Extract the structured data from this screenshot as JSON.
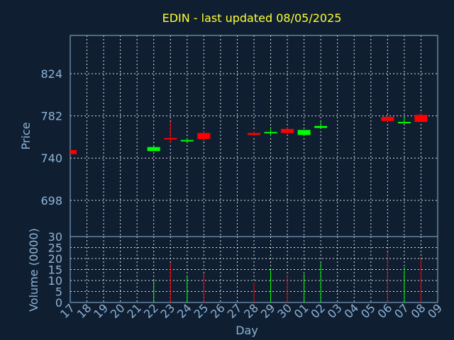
{
  "chart_data": {
    "type": "candlestick",
    "title": "EDIN - last updated 08/05/2025",
    "xlabel": "Day",
    "ylabel": "Price",
    "volume_ylabel": "Volume (0000)",
    "x_ticks": [
      "17",
      "18",
      "19",
      "20",
      "21",
      "22",
      "23",
      "24",
      "25",
      "26",
      "27",
      "28",
      "29",
      "30",
      "01",
      "02",
      "03",
      "04",
      "05",
      "06",
      "07",
      "08",
      "09"
    ],
    "price_ticks": [
      698,
      740,
      782,
      824
    ],
    "price_ylim": [
      662,
      862
    ],
    "volume_ticks": [
      0,
      5,
      10,
      15,
      20,
      25,
      30
    ],
    "volume_ylim": [
      0,
      30
    ],
    "grid": true,
    "up_color": "#00ff00",
    "down_color": "#ff0000",
    "candles": [
      {
        "day": "17",
        "open": 748,
        "high": 748,
        "low": 744,
        "close": 744,
        "volume": 0
      },
      {
        "day": "22",
        "open": 747,
        "high": 752,
        "low": 747,
        "close": 751,
        "volume": 10
      },
      {
        "day": "23",
        "open": 760,
        "high": 776,
        "low": 755,
        "close": 759,
        "volume": 18
      },
      {
        "day": "24",
        "open": 757,
        "high": 760,
        "low": 755,
        "close": 758,
        "volume": 12
      },
      {
        "day": "25",
        "open": 765,
        "high": 767,
        "low": 757,
        "close": 759,
        "volume": 13
      },
      {
        "day": "28",
        "open": 765,
        "high": 767,
        "low": 762,
        "close": 763,
        "volume": 9
      },
      {
        "day": "29",
        "open": 765,
        "high": 771,
        "low": 762,
        "close": 766,
        "volume": 15
      },
      {
        "day": "30",
        "open": 769,
        "high": 770,
        "low": 763,
        "close": 765,
        "volume": 12
      },
      {
        "day": "01",
        "open": 763,
        "high": 768,
        "low": 763,
        "close": 768,
        "volume": 13
      },
      {
        "day": "02",
        "open": 770,
        "high": 776,
        "low": 770,
        "close": 772,
        "volume": 18
      },
      {
        "day": "06",
        "open": 781,
        "high": 782,
        "low": 776,
        "close": 777,
        "volume": 23
      },
      {
        "day": "07",
        "open": 775,
        "high": 782,
        "low": 775,
        "close": 776,
        "volume": 16
      },
      {
        "day": "08",
        "open": 783,
        "high": 785,
        "low": 776,
        "close": 776,
        "volume": 20
      }
    ]
  }
}
